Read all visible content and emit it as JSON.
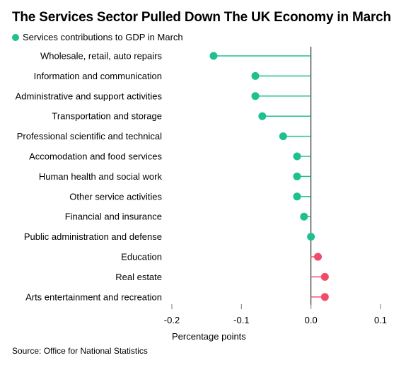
{
  "chart_data": {
    "type": "lollipop",
    "title": "The Services Sector Pulled Down The UK Economy in March",
    "legend": "Services contributions to GDP in March",
    "xlabel": "Percentage points",
    "xlim": [
      -0.2,
      0.1
    ],
    "ticks": [
      -0.2,
      -0.1,
      0.0,
      0.1
    ],
    "tick_labels": [
      "-0.2",
      "-0.1",
      "0.0",
      "0.1"
    ],
    "categories": [
      "Wholesale, retail, auto repairs",
      "Information and communication",
      "Administrative and support activities",
      "Transportation and storage",
      "Professional scientific and technical",
      "Accomodation and food services",
      "Human health and social work",
      "Other service activities",
      "Financial and insurance",
      "Public administration and defense",
      "Education",
      "Real estate",
      "Arts entertainment and recreation"
    ],
    "values": [
      -0.14,
      -0.08,
      -0.08,
      -0.07,
      -0.04,
      -0.02,
      -0.02,
      -0.02,
      -0.01,
      0.0,
      0.01,
      0.02,
      0.02
    ],
    "colors": {
      "negative": "#1fc08f",
      "positive": "#f24a6a",
      "axis": "#000000",
      "ticks": "#777777"
    }
  },
  "source": "Source: Office for National Statistics"
}
